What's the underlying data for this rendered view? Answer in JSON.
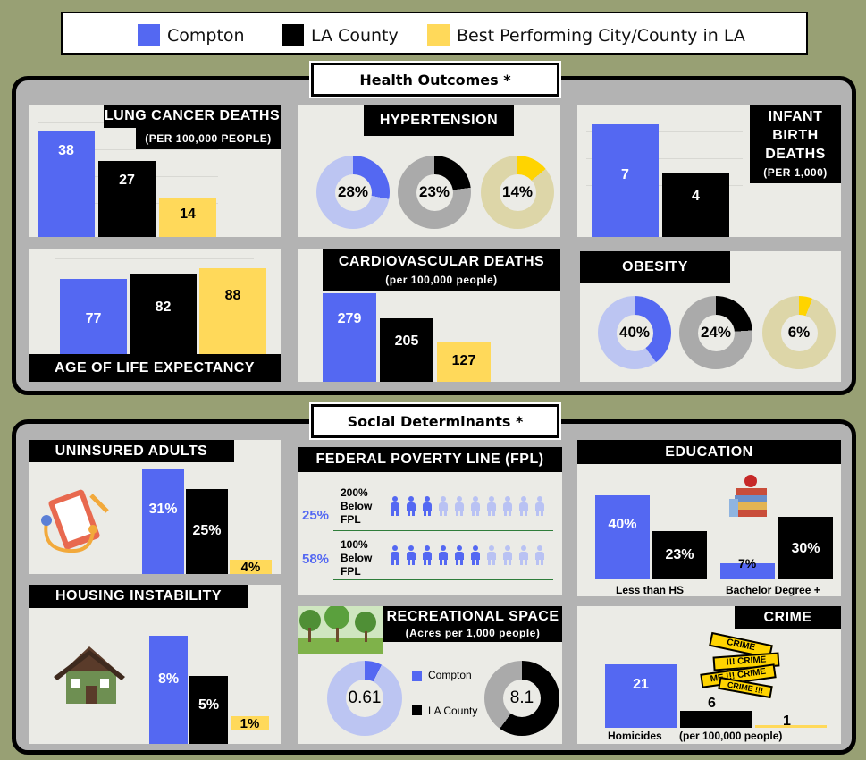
{
  "legend": {
    "compton": "Compton",
    "la_county": "LA County",
    "best": "Best Performing City/County in LA",
    "colors": {
      "compton": "#5468f2",
      "la_county": "#000000",
      "best": "#ffd95a"
    }
  },
  "health": {
    "title": "Health Outcomes *",
    "lung": {
      "title": "LUNG CANCER DEATHS",
      "sub": "(PER 100,000 PEOPLE)",
      "values": [
        "38",
        "27",
        "14"
      ]
    },
    "hypertension": {
      "title": "HYPERTENSION",
      "values": [
        "28%",
        "23%",
        "14%"
      ]
    },
    "infant": {
      "title1": "INFANT",
      "title2": "BIRTH",
      "title3": "DEATHS",
      "sub": "(PER 1,000)",
      "values": [
        "7",
        "4"
      ]
    },
    "life": {
      "title": "AGE OF LIFE EXPECTANCY",
      "values": [
        "77",
        "82",
        "88"
      ]
    },
    "cardio": {
      "title": "CARDIOVASCULAR DEATHS",
      "sub": "(per 100,000 people)",
      "values": [
        "279",
        "205",
        "127"
      ]
    },
    "obesity": {
      "title": "OBESITY",
      "values": [
        "40%",
        "24%",
        "6%"
      ]
    }
  },
  "social": {
    "title": "Social Determinants *",
    "uninsured": {
      "title": "UNINSURED ADULTS",
      "values": [
        "31%",
        "25%",
        "4%"
      ]
    },
    "fpl": {
      "title": "FEDERAL POVERTY LINE (FPL)",
      "rows": [
        {
          "pct": "25%",
          "l1": "200%",
          "l2": "Below",
          "l3": "FPL",
          "filled": 3
        },
        {
          "pct": "58%",
          "l1": "100%",
          "l2": "Below",
          "l3": "FPL",
          "filled": 6
        }
      ]
    },
    "education": {
      "title": "EDUCATION",
      "values": [
        "40%",
        "23%",
        "7%",
        "30%"
      ],
      "label1": "Less than HS",
      "label2": "Bachelor Degree +"
    },
    "housing": {
      "title": "HOUSING INSTABILITY",
      "values": [
        "8%",
        "5%",
        "1%"
      ]
    },
    "recreation": {
      "title": "RECREATIONAL SPACE",
      "sub": "(Acres per 1,000 people)",
      "compton_label": "Compton",
      "county_label": "LA County",
      "values": [
        "0.61",
        "8.1"
      ]
    },
    "crime": {
      "title": "CRIME",
      "values": [
        "21",
        "6",
        "1"
      ],
      "label1": "Homicides",
      "label2": "(per 100,000 people)",
      "tape": "CRIME",
      "tape2": "!!! CRIME",
      "tape3": "ME !!! CRIME",
      "tape4": "CRIME !!!"
    }
  },
  "donut_levels": {
    "hypertension": [
      28,
      23,
      14
    ],
    "obesity": [
      40,
      24,
      6
    ],
    "recreation": [
      0.61,
      8.1
    ]
  }
}
